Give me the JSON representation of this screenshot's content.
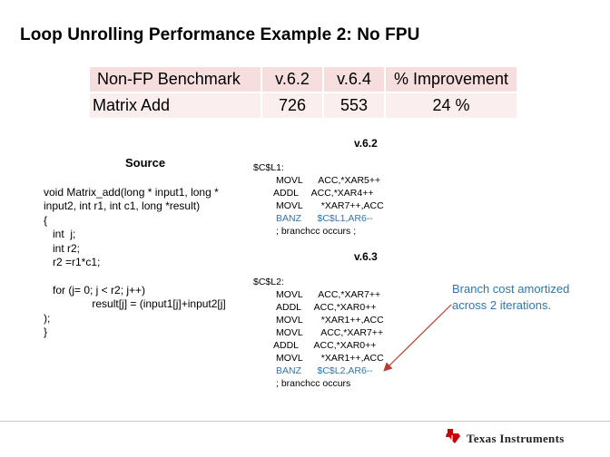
{
  "slide": {
    "title": "Loop Unrolling Performance Example 2:  No FPU"
  },
  "table": {
    "headers": [
      "Non-FP Benchmark",
      "v.6.2",
      "v.6.4",
      "% Improvement"
    ],
    "rows": [
      [
        "Matrix Add",
        "726",
        "553",
        "24 %"
      ]
    ]
  },
  "source": {
    "heading": "Source",
    "lines": [
      "void Matrix_add(long * input1, long *",
      "input2, int r1, int c1, long *result)",
      "{",
      "   int  j;",
      "   int r2;",
      "   r2 =r1*c1;",
      "",
      "   for (j= 0; j < r2; j++)",
      "                result[j] = (input1[j]+input2[j]",
      ");",
      "}"
    ]
  },
  "v62": {
    "heading": "v.6.2",
    "label": "$C$L1:",
    "lines": [
      "MOVL      ACC,*XAR5++",
      "ADDL     ACC,*XAR4++",
      "MOVL       *XAR7++,ACC"
    ],
    "branch": "BANZ      $C$L1,AR6--",
    "comment": "; branchcc occurs ;"
  },
  "v63": {
    "heading": "v.6.3",
    "label": "$C$L2:",
    "lines": [
      "MOVL      ACC,*XAR7++",
      "ADDL     ACC,*XAR0++",
      "MOVL       *XAR1++,ACC",
      "MOVL       ACC,*XAR7++",
      "ADDL      ACC,*XAR0++",
      "MOVL       *XAR1++,ACC"
    ],
    "branch": "BANZ      $C$L2,AR6--",
    "comment": "; branchcc occurs"
  },
  "annotation": {
    "lines": [
      "Branch cost amortized",
      "across 2 iterations."
    ]
  },
  "footer": {
    "logo_text": "Texas Instruments",
    "logo_icon": "ti-state-icon"
  },
  "colors": {
    "table_header_bg": "#f6dede",
    "table_row_bg": "#fbeeee",
    "accent_blue": "#2e75b6",
    "arrow_red": "#c0392b",
    "logo_red": "#cc0000"
  }
}
